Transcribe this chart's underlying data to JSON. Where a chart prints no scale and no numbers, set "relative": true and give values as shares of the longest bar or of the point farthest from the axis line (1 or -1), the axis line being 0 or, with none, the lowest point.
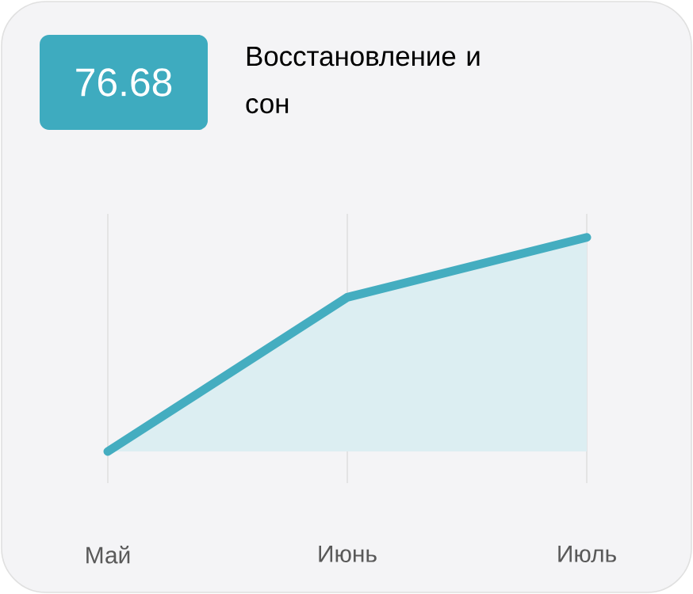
{
  "chart_data": {
    "type": "area",
    "title": "Восстановление и сон",
    "annotations": [
      "76.68"
    ],
    "categories": [
      "Май",
      "Июнь",
      "Июль"
    ],
    "values": [
      0,
      0.72,
      1
    ],
    "color": "#44adc0",
    "relative": true,
    "grid": "x"
  }
}
